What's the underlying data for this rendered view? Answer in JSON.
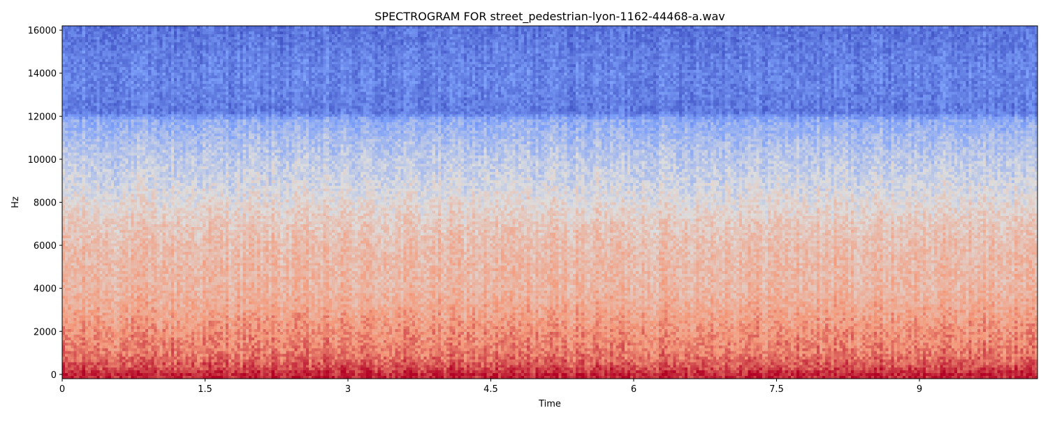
{
  "chart_data": {
    "type": "heatmap",
    "title": "SPECTROGRAM FOR street_pedestrian-lyon-1162-44468-a.wav",
    "xlabel": "Time",
    "ylabel": "Hz",
    "xlim": [
      0,
      10.24
    ],
    "ylim": [
      -200,
      16200
    ],
    "x_ticks": [
      {
        "value": 0,
        "label": "0"
      },
      {
        "value": 1.5,
        "label": "1.5"
      },
      {
        "value": 3,
        "label": "3"
      },
      {
        "value": 4.5,
        "label": "4.5"
      },
      {
        "value": 6,
        "label": "6"
      },
      {
        "value": 7.5,
        "label": "7.5"
      },
      {
        "value": 9,
        "label": "9"
      }
    ],
    "y_ticks": [
      {
        "value": 0,
        "label": "0"
      },
      {
        "value": 2000,
        "label": "2000"
      },
      {
        "value": 4000,
        "label": "4000"
      },
      {
        "value": 6000,
        "label": "6000"
      },
      {
        "value": 8000,
        "label": "8000"
      },
      {
        "value": 10000,
        "label": "10000"
      },
      {
        "value": 12000,
        "label": "12000"
      },
      {
        "value": 14000,
        "label": "14000"
      },
      {
        "value": 16000,
        "label": "16000"
      }
    ],
    "colormap": "coolwarm",
    "colorbar": false,
    "grid": false,
    "intensity_profile": {
      "note_scale": "relative intensity 0 (blue) to 1 (red)",
      "freq_hz": [
        0,
        300,
        1000,
        2000,
        3000,
        4000,
        5000,
        6000,
        7000,
        8000,
        9000,
        10000,
        11000,
        11800,
        12200,
        13000,
        14000,
        15000,
        16000
      ],
      "level": [
        0.95,
        0.88,
        0.8,
        0.76,
        0.7,
        0.65,
        0.64,
        0.62,
        0.58,
        0.52,
        0.46,
        0.42,
        0.36,
        0.3,
        0.14,
        0.16,
        0.17,
        0.15,
        0.12
      ]
    }
  }
}
